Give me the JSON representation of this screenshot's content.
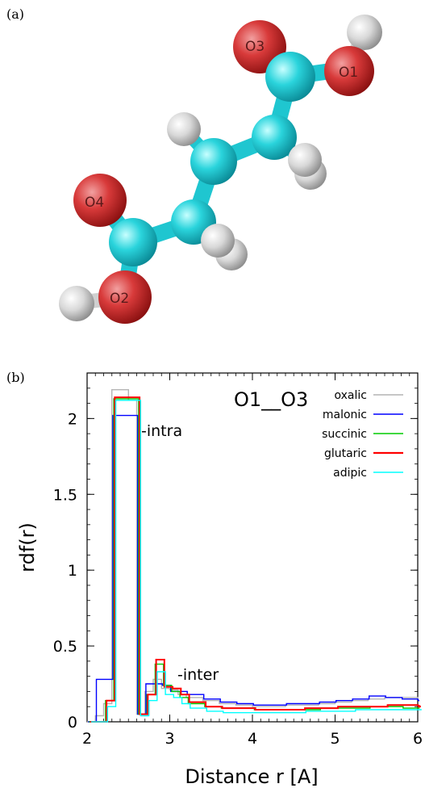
{
  "panels": {
    "a": "(a)",
    "b": "(b)"
  },
  "molecule": {
    "atom_labels": [
      "O3",
      "O1",
      "O4",
      "O2"
    ]
  },
  "chart_data": {
    "type": "line",
    "title": "O1__O3",
    "xlabel": "Distance r [A]",
    "ylabel": "rdf(r)",
    "xlim": [
      2,
      6
    ],
    "ylim": [
      0,
      2.3
    ],
    "xticks": [
      "2",
      "3",
      "4",
      "5",
      "6"
    ],
    "yticks": [
      "0",
      "0.5",
      "1",
      "1.5",
      "2"
    ],
    "legend_position": "top-right",
    "annotations": [
      "-intra",
      "-inter"
    ],
    "x": [
      2.0,
      2.1,
      2.2,
      2.3,
      2.4,
      2.5,
      2.6,
      2.7,
      2.8,
      2.9,
      3.0,
      3.1,
      3.2,
      3.4,
      3.6,
      3.8,
      4.0,
      4.2,
      4.4,
      4.6,
      4.8,
      5.0,
      5.2,
      5.4,
      5.6,
      5.8,
      6.0
    ],
    "series": [
      {
        "name": "oxalic",
        "color": "#b4b4b4",
        "values": [
          0.0,
          0.04,
          0.12,
          2.19,
          2.19,
          2.12,
          0.05,
          0.2,
          0.28,
          0.22,
          0.21,
          0.18,
          0.16,
          0.14,
          0.12,
          0.11,
          0.1,
          0.1,
          0.11,
          0.11,
          0.12,
          0.13,
          0.14,
          0.15,
          0.16,
          0.16,
          0.15
        ]
      },
      {
        "name": "malonic",
        "color": "#0000ff",
        "values": [
          0.0,
          0.28,
          0.28,
          2.02,
          2.02,
          2.02,
          0.05,
          0.25,
          0.25,
          0.24,
          0.2,
          0.2,
          0.18,
          0.15,
          0.13,
          0.12,
          0.11,
          0.11,
          0.12,
          0.12,
          0.13,
          0.14,
          0.15,
          0.17,
          0.16,
          0.15,
          0.14
        ]
      },
      {
        "name": "succinic",
        "color": "#00cc00",
        "values": [
          0.0,
          0.0,
          0.14,
          2.13,
          2.13,
          2.13,
          0.05,
          0.18,
          0.38,
          0.24,
          0.2,
          0.16,
          0.12,
          0.1,
          0.09,
          0.09,
          0.08,
          0.08,
          0.08,
          0.08,
          0.09,
          0.09,
          0.09,
          0.1,
          0.1,
          0.09,
          0.09
        ]
      },
      {
        "name": "glutaric",
        "color": "#ff0000",
        "values": [
          0.0,
          0.0,
          0.14,
          2.14,
          2.14,
          2.14,
          0.05,
          0.18,
          0.41,
          0.23,
          0.22,
          0.18,
          0.13,
          0.1,
          0.09,
          0.09,
          0.08,
          0.08,
          0.08,
          0.09,
          0.09,
          0.1,
          0.1,
          0.1,
          0.11,
          0.11,
          0.1
        ]
      },
      {
        "name": "adipic",
        "color": "#00ffff",
        "values": [
          0.0,
          0.0,
          0.1,
          2.12,
          2.12,
          2.12,
          0.04,
          0.14,
          0.33,
          0.18,
          0.16,
          0.12,
          0.09,
          0.07,
          0.06,
          0.06,
          0.06,
          0.06,
          0.06,
          0.07,
          0.07,
          0.07,
          0.08,
          0.08,
          0.08,
          0.08,
          0.08
        ]
      }
    ]
  }
}
